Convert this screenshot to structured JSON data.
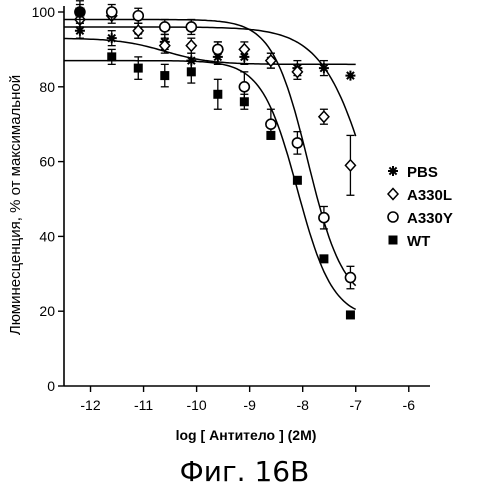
{
  "chart_data": {
    "type": "scatter",
    "title": "",
    "xlabel_prefix": "log [",
    "xlabel_inner": "Антитело",
    "xlabel_suffix": "] (2M)",
    "ylabel": "Люминесценция, % от максимальной",
    "xlim": [
      -12.5,
      -5.6
    ],
    "ylim": [
      0,
      100
    ],
    "x_ticks": [
      -12,
      -11,
      -10,
      -9,
      -8,
      -7,
      -6
    ],
    "x_tick_labels": [
      "-12",
      "-11",
      "-10",
      "-9",
      "-8",
      "-7",
      "-6"
    ],
    "y_ticks": [
      0,
      20,
      40,
      60,
      80,
      100
    ],
    "y_tick_labels": [
      "0",
      "20",
      "40",
      "60",
      "80",
      "100"
    ],
    "legend_position": "right",
    "series": [
      {
        "name": "PBS",
        "marker": "asterisk",
        "x": [
          -12.2,
          -11.6,
          -11.1,
          -10.6,
          -10.1,
          -9.6,
          -9.1,
          -8.6,
          -8.1,
          -7.6,
          -7.1
        ],
        "y": [
          95,
          93,
          95,
          92,
          87,
          88,
          88,
          87,
          85,
          85,
          83
        ],
        "err": [
          2,
          2,
          2,
          2,
          2,
          2,
          2,
          2,
          2,
          2,
          1
        ],
        "fit": {
          "bottom": 86,
          "top": 93,
          "logec50": -10.6,
          "hill": -1
        }
      },
      {
        "name": "A330L",
        "marker": "diamond",
        "x": [
          -12.2,
          -11.6,
          -11.1,
          -10.6,
          -10.1,
          -9.6,
          -9.1,
          -8.6,
          -8.1,
          -7.6,
          -7.1
        ],
        "y": [
          98,
          99,
          95,
          91,
          91,
          90,
          90,
          87,
          84,
          72,
          59
        ],
        "err": [
          2,
          2,
          2,
          2,
          2,
          2,
          2,
          2,
          2,
          2,
          8
        ],
        "fit": {
          "bottom": 0,
          "top": 96,
          "logec50": -6.6,
          "hill": -0.9
        }
      },
      {
        "name": "A330Y",
        "marker": "circle",
        "x": [
          -12.2,
          -11.6,
          -11.1,
          -10.6,
          -10.1,
          -9.6,
          -9.1,
          -8.6,
          -8.1,
          -7.6,
          -7.1
        ],
        "y": [
          100,
          100,
          99,
          96,
          96,
          90,
          80,
          70,
          65,
          45,
          29
        ],
        "err": [
          2,
          2,
          2,
          2,
          2,
          2,
          4,
          4,
          3,
          3,
          3
        ],
        "fit": {
          "bottom": 22,
          "top": 98,
          "logec50": -7.9,
          "hill": -1.3
        }
      },
      {
        "name": "WT",
        "marker": "square",
        "x": [
          -12.2,
          -11.6,
          -11.1,
          -10.6,
          -10.1,
          -9.6,
          -9.1,
          -8.6,
          -8.1,
          -7.6,
          -7.1
        ],
        "y": [
          100,
          88,
          85,
          83,
          84,
          78,
          76,
          67,
          55,
          34,
          19
        ],
        "err": [
          3,
          2,
          3,
          3,
          3,
          4,
          2,
          1,
          1,
          1,
          1
        ],
        "fit": {
          "bottom": 18,
          "top": 87,
          "logec50": -8.1,
          "hill": -1.3
        }
      }
    ]
  },
  "caption": "Фиг. 16В"
}
